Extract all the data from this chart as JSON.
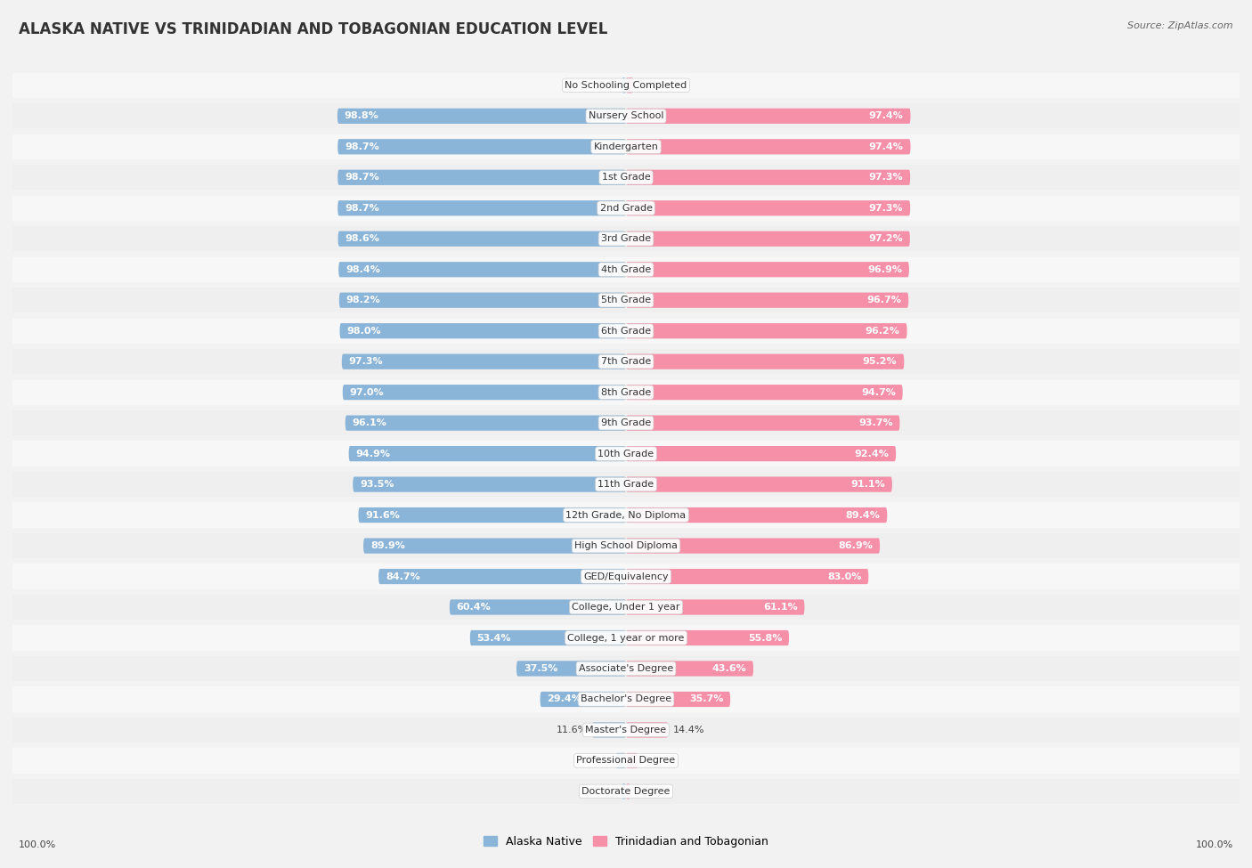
{
  "title": "ALASKA NATIVE VS TRINIDADIAN AND TOBAGONIAN EDUCATION LEVEL",
  "source": "Source: ZipAtlas.com",
  "categories": [
    "No Schooling Completed",
    "Nursery School",
    "Kindergarten",
    "1st Grade",
    "2nd Grade",
    "3rd Grade",
    "4th Grade",
    "5th Grade",
    "6th Grade",
    "7th Grade",
    "8th Grade",
    "9th Grade",
    "10th Grade",
    "11th Grade",
    "12th Grade, No Diploma",
    "High School Diploma",
    "GED/Equivalency",
    "College, Under 1 year",
    "College, 1 year or more",
    "Associate's Degree",
    "Bachelor's Degree",
    "Master's Degree",
    "Professional Degree",
    "Doctorate Degree"
  ],
  "alaska_native": [
    1.5,
    98.8,
    98.7,
    98.7,
    98.7,
    98.6,
    98.4,
    98.2,
    98.0,
    97.3,
    97.0,
    96.1,
    94.9,
    93.5,
    91.6,
    89.9,
    84.7,
    60.4,
    53.4,
    37.5,
    29.4,
    11.6,
    3.5,
    1.4
  ],
  "trinidadian": [
    2.6,
    97.4,
    97.4,
    97.3,
    97.3,
    97.2,
    96.9,
    96.7,
    96.2,
    95.2,
    94.7,
    93.7,
    92.4,
    91.1,
    89.4,
    86.9,
    83.0,
    61.1,
    55.8,
    43.6,
    35.7,
    14.4,
    4.0,
    1.5
  ],
  "alaska_color": "#8ab4d8",
  "trinidadian_color": "#f590a8",
  "row_color_even": "#f7f7f7",
  "row_color_odd": "#efefef",
  "background_color": "#f2f2f2",
  "title_fontsize": 12,
  "label_fontsize": 8,
  "category_fontsize": 8,
  "legend_fontsize": 9,
  "source_fontsize": 8
}
